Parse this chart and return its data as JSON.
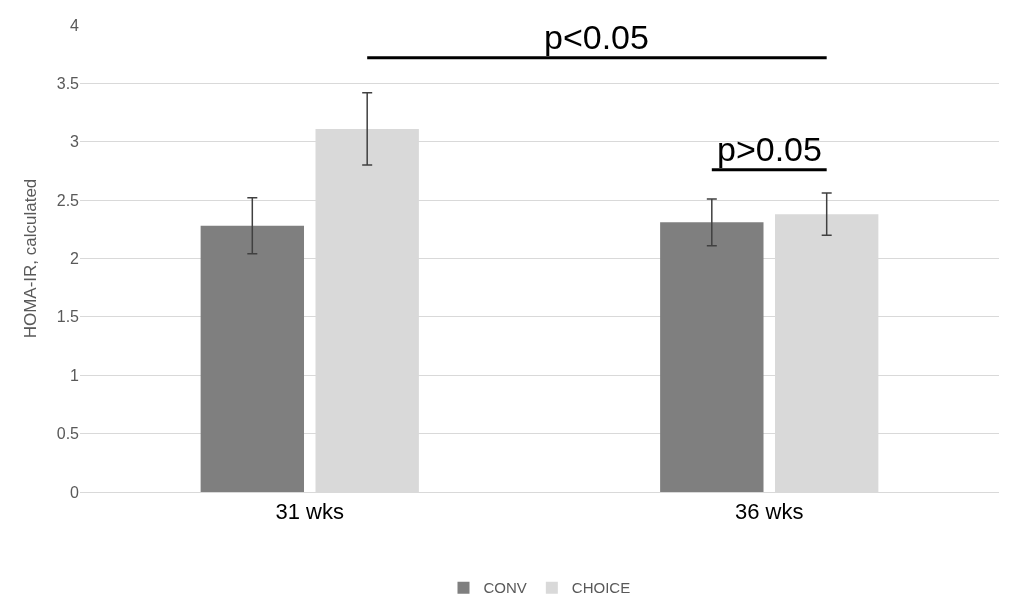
{
  "chart_data": {
    "type": "bar",
    "ylabel": "HOMA-IR, calculated",
    "categories": [
      "31 wks",
      "36 wks"
    ],
    "series": [
      {
        "name": "CONV",
        "color": "#7f7f7f",
        "values": [
          2.28,
          2.31
        ],
        "errors": [
          0.24,
          0.2
        ]
      },
      {
        "name": "CHOICE",
        "color": "#d9d9d9",
        "values": [
          3.11,
          2.38
        ],
        "errors": [
          0.31,
          0.18
        ]
      }
    ],
    "ylim": [
      0,
      4
    ],
    "yticks": [
      0,
      0.5,
      1,
      1.5,
      2,
      2.5,
      3,
      3.5,
      4
    ],
    "grid": "y",
    "legend": "bottom",
    "annotations": [
      "p<0.05",
      "p>0.05"
    ]
  }
}
